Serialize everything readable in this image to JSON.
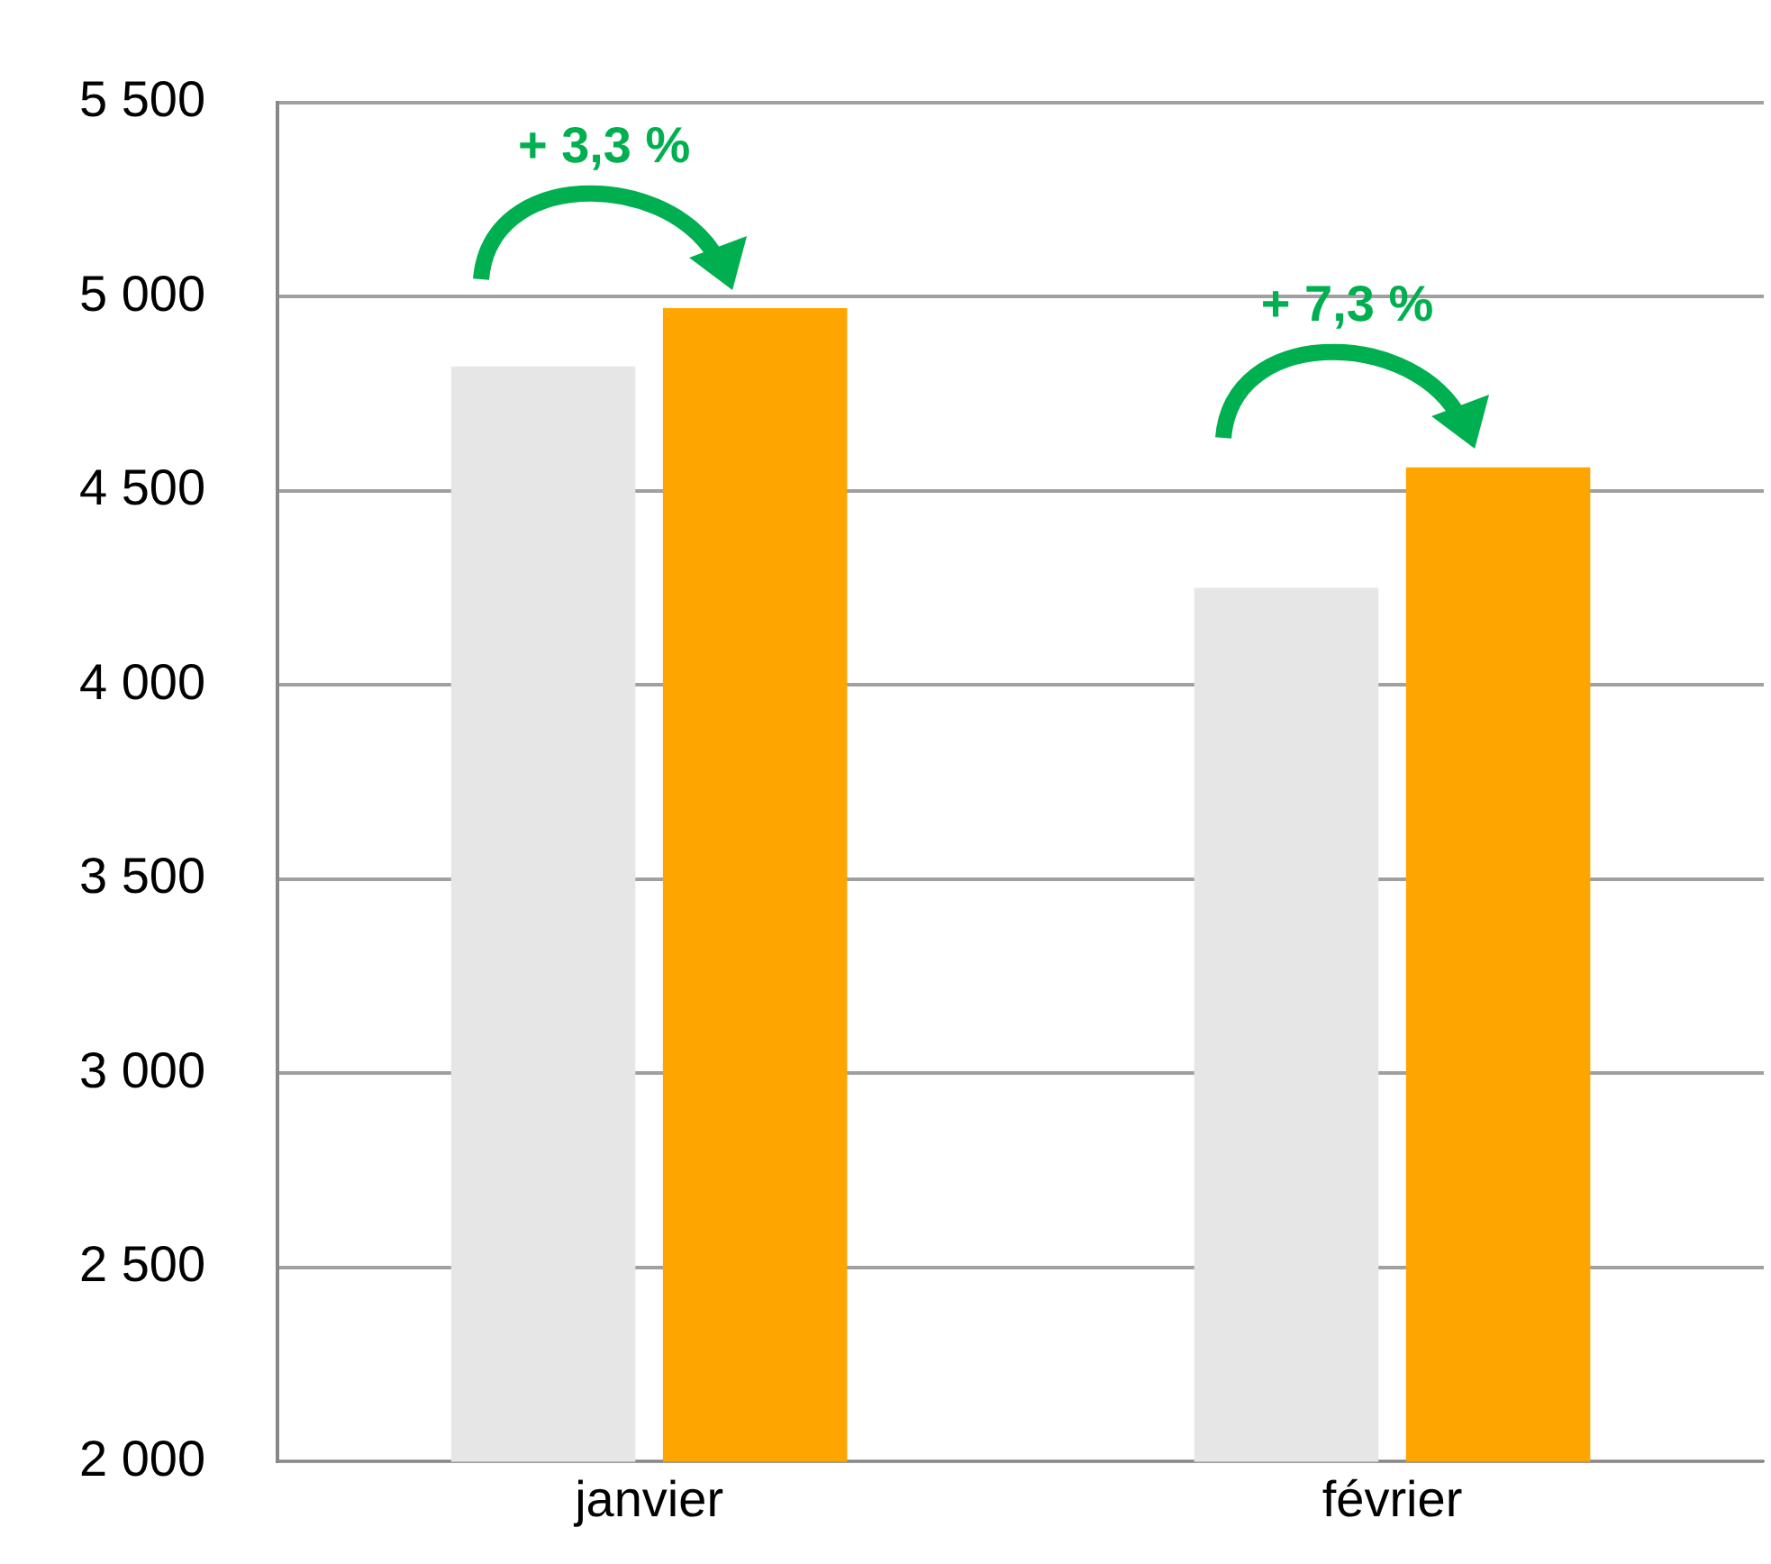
{
  "chart_data": {
    "type": "bar",
    "categories": [
      "janvier",
      "février"
    ],
    "series": [
      {
        "color": "#e6e6e6",
        "values": [
          4820,
          4250
        ]
      },
      {
        "color": "#ffa500",
        "values": [
          4970,
          4560
        ]
      }
    ],
    "ylim": [
      2000,
      5500
    ],
    "yticks": [
      {
        "value": 2000,
        "label": "2 000"
      },
      {
        "value": 2500,
        "label": "2 500"
      },
      {
        "value": 3000,
        "label": "3 000"
      },
      {
        "value": 3500,
        "label": "3 500"
      },
      {
        "value": 4000,
        "label": "4 000"
      },
      {
        "value": 4500,
        "label": "4 500"
      },
      {
        "value": 5000,
        "label": "5 000"
      },
      {
        "value": 5500,
        "label": "5 500"
      }
    ],
    "grid": "y",
    "legend": false,
    "annotations": [
      "+ 3,3 %",
      "+ 7,3 %"
    ]
  }
}
